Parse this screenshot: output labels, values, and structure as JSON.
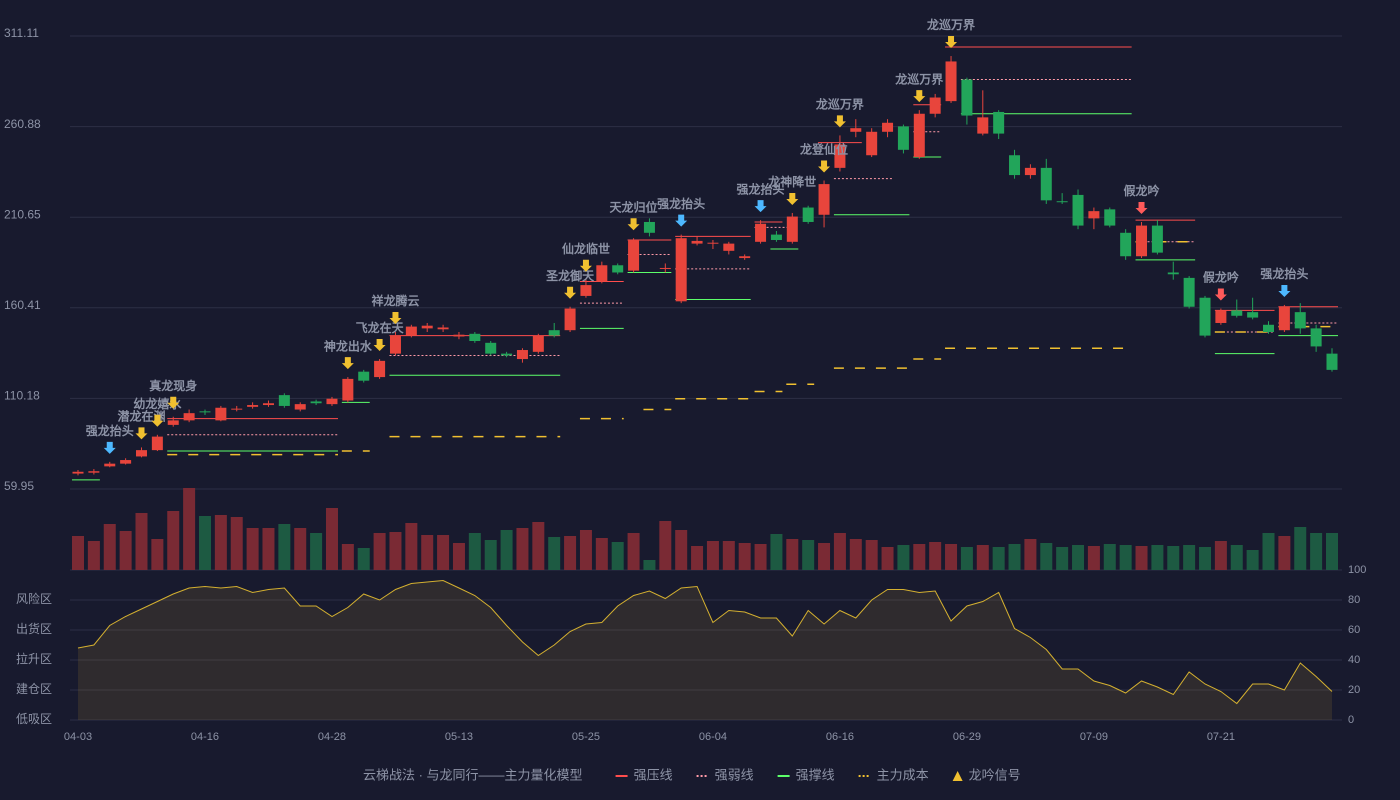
{
  "chart_data": {
    "type": "candlestick",
    "categories": [
      "04-03",
      null,
      null,
      null,
      null,
      null,
      null,
      null,
      "04-16",
      null,
      null,
      null,
      null,
      null,
      null,
      null,
      "04-28",
      null,
      null,
      null,
      null,
      null,
      null,
      null,
      "05-13",
      null,
      null,
      null,
      null,
      null,
      null,
      null,
      "05-25",
      null,
      null,
      null,
      null,
      null,
      null,
      null,
      "06-04",
      null,
      null,
      null,
      null,
      null,
      null,
      null,
      "06-16",
      null,
      null,
      null,
      null,
      null,
      null,
      null,
      "06-29",
      null,
      null,
      null,
      null,
      null,
      null,
      null,
      "07-09",
      null,
      null,
      null,
      null,
      null,
      null,
      null,
      "07-21",
      null,
      null,
      null,
      null,
      null,
      null,
      null
    ],
    "open": [
      68.5,
      69,
      72.5,
      74,
      78,
      81.5,
      95.5,
      98,
      103,
      98,
      104,
      105.5,
      106.5,
      112,
      104,
      108.5,
      107,
      109,
      125,
      122,
      135,
      145,
      149,
      148.5,
      144.5,
      146,
      141,
      135,
      132,
      136,
      148,
      148,
      167,
      175,
      184,
      181,
      208,
      182,
      164,
      196,
      196,
      192,
      188,
      197,
      201,
      197,
      216,
      212,
      238,
      258,
      245,
      258,
      261,
      244,
      268,
      275,
      287,
      257,
      269,
      245,
      234,
      238,
      219.5,
      223,
      210,
      215,
      202,
      189,
      206,
      180,
      177,
      166,
      152,
      159,
      158,
      151,
      148,
      158,
      149,
      135
    ],
    "high": [
      70.5,
      71,
      75,
      77,
      83,
      90,
      100,
      104,
      104,
      106,
      106,
      108,
      109,
      113,
      108,
      109.5,
      111,
      122,
      126,
      132,
      147,
      151,
      152,
      151,
      147,
      147,
      142,
      136,
      138,
      146,
      152,
      161,
      176,
      186,
      185,
      199,
      210,
      185,
      201,
      200,
      198,
      197,
      190,
      209,
      203,
      213,
      217,
      231,
      256,
      265,
      260,
      265,
      262,
      270,
      279,
      300,
      288,
      281,
      270,
      248,
      240,
      243,
      224,
      226,
      216,
      216,
      204,
      208,
      209,
      186,
      178,
      167,
      160,
      165,
      166,
      153,
      162,
      163,
      151,
      138
    ],
    "low": [
      67.5,
      68,
      72,
      73.5,
      77.5,
      81,
      94.5,
      97,
      101,
      97.5,
      103,
      104.5,
      105.5,
      105,
      103,
      106.5,
      106,
      108,
      119,
      121,
      134,
      144,
      147,
      147,
      143,
      141,
      134,
      133,
      130,
      135,
      144,
      147,
      166,
      174,
      179,
      180,
      200,
      180,
      163,
      195,
      193,
      190,
      187,
      196,
      197,
      196,
      207,
      205,
      236,
      255,
      244,
      255,
      246,
      243,
      266,
      274,
      262,
      256,
      254,
      232,
      232,
      218,
      218,
      204,
      204,
      205,
      187,
      188,
      190,
      176,
      160,
      144,
      151,
      155,
      154,
      146,
      147,
      146,
      136,
      125
    ],
    "close": [
      69.5,
      69.8,
      74,
      76,
      81.5,
      89,
      98,
      102,
      102.5,
      105,
      104.5,
      106.5,
      107.5,
      106,
      107,
      107.5,
      110,
      121,
      120,
      131,
      145,
      150,
      150.5,
      149.5,
      145.5,
      142,
      135,
      134,
      137,
      145,
      145,
      160,
      173,
      184,
      180,
      198,
      202,
      182.5,
      199,
      197.5,
      196.5,
      196,
      189,
      207,
      198,
      211,
      208,
      229,
      251,
      260,
      258,
      263,
      248,
      268,
      277,
      297,
      267,
      266,
      257,
      234,
      238,
      220,
      219,
      206,
      214,
      206,
      189,
      206,
      191,
      179,
      161,
      145,
      159,
      156,
      155,
      147,
      161,
      149,
      139,
      126
    ],
    "up_color": "#e8453c",
    "down_color": "#22a55a",
    "ylim": [
      59.95,
      311.11
    ],
    "yticks": [
      59.95,
      110.18,
      160.41,
      210.65,
      260.88,
      311.11
    ],
    "grid": true,
    "levels": [
      {
        "name": "强压线",
        "color": "#ff4d4d",
        "style": "solid",
        "segments": [
          [
            6,
            16,
            99
          ],
          [
            20,
            30,
            145
          ],
          [
            32,
            34,
            175
          ],
          [
            35,
            37,
            198
          ],
          [
            38,
            42,
            200
          ],
          [
            43,
            44,
            208
          ],
          [
            47,
            49,
            252
          ],
          [
            53,
            54,
            273
          ],
          [
            55,
            66,
            305
          ],
          [
            67,
            70,
            209
          ],
          [
            72,
            75,
            159
          ],
          [
            76,
            79,
            161
          ]
        ]
      },
      {
        "name": "强弱线",
        "color": "#ff9aa8",
        "style": "dashed",
        "segments": [
          [
            6,
            16,
            90
          ],
          [
            20,
            30,
            134
          ],
          [
            32,
            34,
            163
          ],
          [
            35,
            37,
            190
          ],
          [
            38,
            42,
            182
          ],
          [
            43,
            45,
            205
          ],
          [
            48,
            51,
            232
          ],
          [
            53,
            54,
            258
          ],
          [
            56,
            66,
            287
          ],
          [
            67,
            70,
            197
          ],
          [
            72,
            75,
            147
          ],
          [
            76,
            79,
            152
          ]
        ]
      },
      {
        "name": "强撑线",
        "color": "#5cff6a",
        "style": "solid",
        "segments": [
          [
            0,
            1,
            65
          ],
          [
            6,
            16,
            81
          ],
          [
            17,
            18,
            108
          ],
          [
            20,
            30,
            123
          ],
          [
            32,
            34,
            149
          ],
          [
            35,
            37,
            180
          ],
          [
            38,
            42,
            165
          ],
          [
            44,
            45,
            193
          ],
          [
            48,
            52,
            212
          ],
          [
            53,
            54,
            244
          ],
          [
            56,
            66,
            268
          ],
          [
            67,
            70,
            187
          ],
          [
            72,
            75,
            135
          ],
          [
            76,
            79,
            145
          ]
        ]
      },
      {
        "name": "主力成本",
        "color": "#f0c030",
        "style": "cost",
        "segments": [
          [
            6,
            16,
            79
          ],
          [
            17,
            18,
            81
          ],
          [
            20,
            30,
            89
          ],
          [
            32,
            34,
            99
          ],
          [
            36,
            37,
            104
          ],
          [
            38,
            42,
            110
          ],
          [
            43,
            44,
            114
          ],
          [
            45,
            46,
            118
          ],
          [
            48,
            52,
            127
          ],
          [
            53,
            54,
            132
          ],
          [
            55,
            66,
            138
          ],
          [
            67,
            70,
            197
          ],
          [
            72,
            75,
            147
          ],
          [
            76,
            79,
            150
          ]
        ]
      }
    ],
    "signal_name": "龙吟信号",
    "signal_color": "#f0c030",
    "signals": [
      {
        "index": 2,
        "label": "强龙抬头",
        "color": "#4db8ff"
      },
      {
        "index": 4,
        "label": "潜龙在渊",
        "color": "#f0c030"
      },
      {
        "index": 5,
        "label": "幼龙嬉水",
        "color": "#f0c030"
      },
      {
        "index": 6,
        "label": "真龙现身",
        "color": "#f0c030"
      },
      {
        "index": 17,
        "label": "神龙出水",
        "color": "#f0c030"
      },
      {
        "index": 19,
        "label": "飞龙在天",
        "color": "#f0c030"
      },
      {
        "index": 20,
        "label": "祥龙腾云",
        "color": "#f0c030"
      },
      {
        "index": 31,
        "label": "圣龙御天",
        "color": "#f0c030"
      },
      {
        "index": 32,
        "label": "仙龙临世",
        "color": "#f0c030"
      },
      {
        "index": 35,
        "label": "天龙归位",
        "color": "#f0c030"
      },
      {
        "index": 38,
        "label": "强龙抬头",
        "color": "#4db8ff"
      },
      {
        "index": 43,
        "label": "强龙抬头",
        "color": "#4db8ff"
      },
      {
        "index": 45,
        "label": "龙神降世",
        "color": "#f0c030"
      },
      {
        "index": 47,
        "label": "龙登仙位",
        "color": "#f0c030"
      },
      {
        "index": 48,
        "label": "龙巡万界",
        "color": "#f0c030"
      },
      {
        "index": 53,
        "label": "龙巡万界",
        "color": "#f0c030"
      },
      {
        "index": 55,
        "label": "龙巡万界",
        "color": "#f0c030"
      },
      {
        "index": 67,
        "label": "假龙吟",
        "color": "#ff5a5a"
      },
      {
        "index": 72,
        "label": "假龙吟",
        "color": "#ff5a5a"
      },
      {
        "index": 76,
        "label": "强龙抬头",
        "color": "#4db8ff"
      }
    ],
    "volume": {
      "type": "bar",
      "up_color": "#7a2a34",
      "down_color": "#1d5a42",
      "values": [
        34,
        29,
        46,
        39,
        57,
        31,
        59,
        82,
        54,
        55,
        53,
        42,
        42,
        46,
        42,
        37,
        62,
        26,
        22,
        37,
        38,
        47,
        35,
        35,
        27,
        37,
        30,
        40,
        42,
        48,
        33,
        34,
        40,
        32,
        28,
        37,
        10,
        49,
        40,
        24,
        29,
        29,
        27,
        26,
        36,
        31,
        30,
        27,
        37,
        31,
        30,
        23,
        25,
        26,
        28,
        26,
        23,
        25,
        23,
        26,
        31,
        27,
        23,
        25,
        24,
        26,
        25,
        24,
        25,
        24,
        25,
        23,
        29,
        25,
        20,
        37,
        34,
        43,
        37,
        37
      ]
    },
    "oscillator": {
      "type": "area",
      "color": "#d4b030",
      "values": [
        48,
        50,
        63,
        69,
        74,
        79,
        84,
        88,
        89,
        88,
        89,
        85,
        87,
        88,
        76,
        76,
        69,
        75,
        84,
        80,
        87,
        91,
        92,
        93,
        88,
        83,
        75,
        63,
        52,
        43,
        50,
        59,
        64,
        65,
        76,
        83,
        86,
        81,
        88,
        89,
        65,
        73,
        72,
        68,
        68,
        56,
        73,
        64,
        73,
        68,
        80,
        87,
        87,
        85,
        86,
        66,
        76,
        79,
        85,
        61,
        55,
        47,
        34,
        34,
        26,
        23,
        18,
        26,
        22,
        17,
        32,
        24,
        19,
        11,
        24,
        24,
        20,
        38,
        29,
        19
      ],
      "y2lim": [
        0,
        100
      ],
      "y2ticks": [
        0,
        20,
        40,
        60,
        80,
        100
      ],
      "y2tick_colors": [
        "#ff4d4d",
        "#ff4d4d",
        "#4a9eff",
        "#e040e0",
        "#f0a030",
        "#3cff5a"
      ],
      "zones": [
        {
          "value": 80,
          "label": "风险区",
          "color": "#f0a030"
        },
        {
          "value": 60,
          "label": "出货区",
          "color": "#e040e0"
        },
        {
          "value": 40,
          "label": "拉升区",
          "color": "#4a9eff"
        },
        {
          "value": 20,
          "label": "建仓区",
          "color": "#ff4d4d"
        },
        {
          "value": 0,
          "label": "低吸区",
          "color": "#ff4d6a"
        }
      ]
    },
    "legend_title": "云梯战法 · 与龙同行——主力量化模型",
    "legend_title_color": "#e8c060"
  }
}
